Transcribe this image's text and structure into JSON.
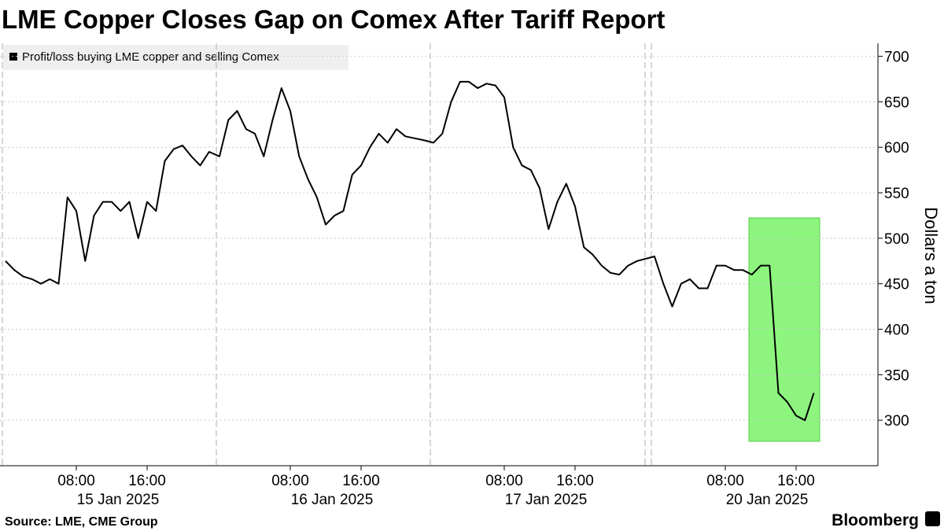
{
  "chart_data": {
    "type": "line",
    "title": "LME Copper Closes Gap on Comex After Tariff Report",
    "y_label": "Dollars a ton",
    "source": "Source: LME, CME Group",
    "brand": "Bloomberg",
    "days": [
      "15 Jan 2025",
      "16 Jan 2025",
      "17 Jan 2025",
      "20 Jan 2025"
    ],
    "xticks": [
      {
        "value": "15 Jan 2025 08:00",
        "label": "08:00"
      },
      {
        "value": "15 Jan 2025 16:00",
        "label": "16:00"
      },
      {
        "value": "16 Jan 2025 08:00",
        "label": "08:00"
      },
      {
        "value": "16 Jan 2025 16:00",
        "label": "16:00"
      },
      {
        "value": "17 Jan 2025 08:00",
        "label": "08:00"
      },
      {
        "value": "17 Jan 2025 16:00",
        "label": "16:00"
      },
      {
        "value": "20 Jan 2025 08:00",
        "label": "08:00"
      },
      {
        "value": "20 Jan 2025 16:00",
        "label": "16:00"
      }
    ],
    "ylim": [
      250,
      710
    ],
    "yticks": [
      300,
      350,
      400,
      450,
      500,
      550,
      600,
      650,
      700
    ],
    "grid": true,
    "series": [
      {
        "name": "Profit/loss buying LME copper and selling Comex",
        "color": "#000000",
        "x": [
          "15 Jan 2025 00:00",
          "15 Jan 2025 01:00",
          "15 Jan 2025 02:00",
          "15 Jan 2025 03:00",
          "15 Jan 2025 04:00",
          "15 Jan 2025 05:00",
          "15 Jan 2025 06:00",
          "15 Jan 2025 07:00",
          "15 Jan 2025 08:00",
          "15 Jan 2025 09:00",
          "15 Jan 2025 10:00",
          "15 Jan 2025 11:00",
          "15 Jan 2025 12:00",
          "15 Jan 2025 13:00",
          "15 Jan 2025 14:00",
          "15 Jan 2025 15:00",
          "15 Jan 2025 16:00",
          "15 Jan 2025 17:00",
          "15 Jan 2025 18:00",
          "15 Jan 2025 19:00",
          "15 Jan 2025 20:00",
          "15 Jan 2025 21:00",
          "15 Jan 2025 22:00",
          "15 Jan 2025 23:00",
          "16 Jan 2025 00:00",
          "16 Jan 2025 01:00",
          "16 Jan 2025 02:00",
          "16 Jan 2025 03:00",
          "16 Jan 2025 04:00",
          "16 Jan 2025 05:00",
          "16 Jan 2025 06:00",
          "16 Jan 2025 07:00",
          "16 Jan 2025 08:00",
          "16 Jan 2025 09:00",
          "16 Jan 2025 10:00",
          "16 Jan 2025 11:00",
          "16 Jan 2025 12:00",
          "16 Jan 2025 13:00",
          "16 Jan 2025 14:00",
          "16 Jan 2025 15:00",
          "16 Jan 2025 16:00",
          "16 Jan 2025 17:00",
          "16 Jan 2025 18:00",
          "16 Jan 2025 19:00",
          "16 Jan 2025 20:00",
          "16 Jan 2025 21:00",
          "16 Jan 2025 22:00",
          "16 Jan 2025 23:00",
          "17 Jan 2025 00:00",
          "17 Jan 2025 01:00",
          "17 Jan 2025 02:00",
          "17 Jan 2025 03:00",
          "17 Jan 2025 04:00",
          "17 Jan 2025 05:00",
          "17 Jan 2025 06:00",
          "17 Jan 2025 07:00",
          "17 Jan 2025 08:00",
          "17 Jan 2025 09:00",
          "17 Jan 2025 10:00",
          "17 Jan 2025 11:00",
          "17 Jan 2025 12:00",
          "17 Jan 2025 13:00",
          "17 Jan 2025 14:00",
          "17 Jan 2025 15:00",
          "17 Jan 2025 16:00",
          "17 Jan 2025 17:00",
          "17 Jan 2025 18:00",
          "17 Jan 2025 19:00",
          "17 Jan 2025 20:00",
          "17 Jan 2025 21:00",
          "17 Jan 2025 22:00",
          "17 Jan 2025 23:00",
          "20 Jan 2025 00:00",
          "20 Jan 2025 01:00",
          "20 Jan 2025 02:00",
          "20 Jan 2025 03:00",
          "20 Jan 2025 04:00",
          "20 Jan 2025 05:00",
          "20 Jan 2025 06:00",
          "20 Jan 2025 07:00",
          "20 Jan 2025 08:00",
          "20 Jan 2025 09:00",
          "20 Jan 2025 10:00",
          "20 Jan 2025 11:00",
          "20 Jan 2025 12:00",
          "20 Jan 2025 13:00",
          "20 Jan 2025 14:00",
          "20 Jan 2025 15:00",
          "20 Jan 2025 16:00",
          "20 Jan 2025 17:00",
          "20 Jan 2025 18:00"
        ],
        "values": [
          475,
          465,
          458,
          455,
          450,
          455,
          450,
          545,
          530,
          475,
          525,
          540,
          540,
          530,
          540,
          500,
          540,
          530,
          585,
          598,
          602,
          590,
          580,
          595,
          590,
          630,
          640,
          620,
          615,
          590,
          630,
          665,
          640,
          590,
          565,
          545,
          515,
          525,
          530,
          570,
          580,
          600,
          615,
          605,
          620,
          612,
          610,
          608,
          605,
          615,
          650,
          672,
          672,
          665,
          670,
          668,
          655,
          600,
          580,
          575,
          555,
          510,
          540,
          560,
          535,
          490,
          482,
          470,
          462,
          460,
          470,
          475,
          480,
          450,
          425,
          450,
          455,
          445,
          445,
          470,
          470,
          465,
          465,
          460,
          470,
          470,
          330,
          320,
          305,
          300,
          330
        ]
      }
    ]
  }
}
